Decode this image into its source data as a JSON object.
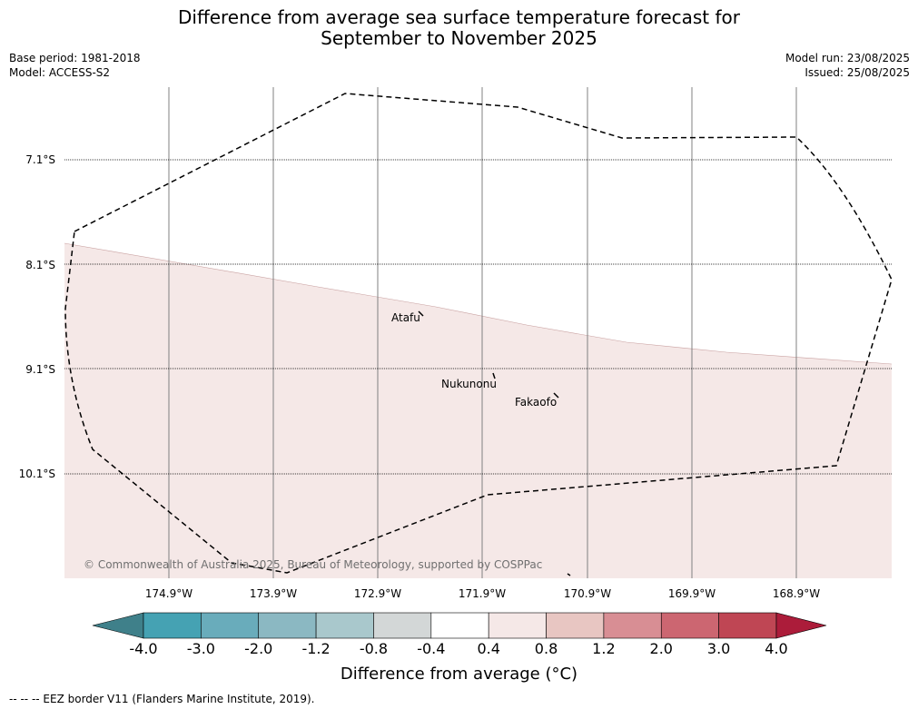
{
  "title_line1": "Difference from average sea surface temperature forecast for",
  "title_line2": "September to November 2025",
  "base_period": "Base period: 1981-2018",
  "model": "Model: ACCESS-S2",
  "model_run": "Model run: 23/08/2025",
  "issued": "Issued: 25/08/2025",
  "lat_labels": [
    "7.1°S",
    "8.1°S",
    "9.1°S",
    "10.1°S"
  ],
  "lon_labels": [
    "174.9°W",
    "173.9°W",
    "172.9°W",
    "171.9°W",
    "170.9°W",
    "169.9°W",
    "168.9°W"
  ],
  "places": {
    "atafu": "Atafu",
    "nukunonu": "Nukunonu",
    "fakaofo": "Fakaofo"
  },
  "copyright": "© Commonwealth of Australia 2025, Bureau of Meteorology, supported by COSPPac",
  "colorbar": {
    "label": "Difference from average (°C)",
    "ticks": [
      "-4.0",
      "-3.0",
      "-2.0",
      "-1.2",
      "-0.8",
      "-0.4",
      "0.4",
      "0.8",
      "1.2",
      "2.0",
      "3.0",
      "4.0"
    ],
    "colors": [
      "#3f808a",
      "#45a2b3",
      "#69acbb",
      "#8bb8c2",
      "#a9c8cc",
      "#d3d7d7",
      "#ffffff",
      "#f5e8e7",
      "#e8c6c2",
      "#d88e94",
      "#cc6671",
      "#bf4654",
      "#ac1c3a"
    ]
  },
  "anomaly_colors": {
    "upper": "#ffffff",
    "lower": "#f5e8e7"
  },
  "footer": "--  --  -- EEZ border V11 (Flanders Marine Institute, 2019)."
}
